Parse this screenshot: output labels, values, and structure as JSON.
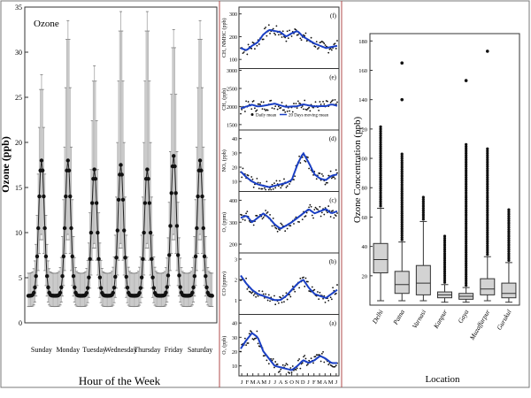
{
  "chart_data": [
    {
      "type": "line",
      "panel_label": "Ozone",
      "xlabel": "Hour of the Week",
      "ylabel": "Ozone (ppb)",
      "ylim": [
        0,
        35
      ],
      "yticks": [
        0,
        5,
        10,
        15,
        20,
        25,
        30,
        35
      ],
      "categories": [
        "Sunday",
        "Monday",
        "Tuesday",
        "Wednesday",
        "Thursday",
        "Friday",
        "Saturday"
      ],
      "daily_profile": {
        "mean_baseline": 3,
        "mean_peak": [
          18,
          18,
          17,
          17.5,
          17,
          18.5,
          18
        ],
        "upper_peak": [
          25,
          31,
          26,
          32,
          32,
          30,
          31
        ],
        "lower_peak": [
          11,
          11,
          10,
          10,
          10,
          11,
          11
        ]
      },
      "colors": {
        "mean": "#111111",
        "band": "#b8b8b8"
      }
    },
    {
      "type": "scatter",
      "xticks": [
        "J",
        "F",
        "M",
        "A",
        "M",
        "J",
        "J",
        "A",
        "S",
        "O",
        "N",
        "D",
        "J",
        "F",
        "M",
        "A",
        "M",
        "J"
      ],
      "legend": {
        "daily": "Daily mean",
        "moving": "20 Days moving mean"
      },
      "panels": [
        {
          "label": "(f)",
          "ylabel": "CH₃ NMHC (ppb)",
          "yticks": [
            100,
            200,
            300
          ],
          "ylim": [
            60,
            330
          ],
          "trend": [
            150,
            140,
            160,
            175,
            210,
            230,
            225,
            220,
            200,
            215,
            225,
            200,
            185,
            170,
            160,
            150,
            155,
            160
          ]
        },
        {
          "label": "(e)",
          "ylabel": "CH₄ (ppb)",
          "yticks": [
            1500,
            2000,
            2500,
            3000
          ],
          "ylim": [
            1350,
            3050
          ],
          "trend": [
            1950,
            2000,
            2050,
            2000,
            2020,
            2050,
            2080,
            2030,
            1990,
            2000,
            2010,
            2060,
            2030,
            2000,
            2010,
            2010,
            2060,
            2020
          ]
        },
        {
          "label": "(d)",
          "ylabel": "NOₓ (ppb)",
          "yticks": [
            10,
            20,
            30,
            40
          ],
          "ylim": [
            3,
            46
          ],
          "trend": [
            17,
            13,
            10,
            8,
            7,
            6,
            7,
            8,
            9,
            11,
            22,
            30,
            23,
            15,
            12,
            11,
            14,
            15
          ]
        },
        {
          "label": "(c)",
          "ylabel": "O₃ (ppm)",
          "yticks": [
            200,
            300,
            400
          ],
          "ylim": [
            160,
            440
          ],
          "trend": [
            320,
            330,
            300,
            320,
            340,
            320,
            290,
            270,
            285,
            300,
            320,
            340,
            360,
            340,
            350,
            360,
            340,
            350
          ]
        },
        {
          "label": "(b)",
          "ylabel": "CO (ppmv)",
          "yticks": [
            1,
            2,
            3
          ],
          "ylim": [
            0.3,
            3.3
          ],
          "trend": [
            2.2,
            1.8,
            1.5,
            1.3,
            1.2,
            1.1,
            1.0,
            1.0,
            1.2,
            1.5,
            1.8,
            2.0,
            1.6,
            1.3,
            1.2,
            1.1,
            1.3,
            1.5
          ]
        },
        {
          "label": "(a)",
          "ylabel": "O₃ (ppb)",
          "yticks": [
            10,
            20,
            30,
            40
          ],
          "ylim": [
            3,
            46
          ],
          "trend": [
            22,
            28,
            33,
            30,
            20,
            15,
            10,
            9,
            8,
            7,
            10,
            14,
            12,
            14,
            17,
            15,
            12,
            12
          ]
        }
      ],
      "colors": {
        "daily": "#111111",
        "moving": "#1a3fc4"
      }
    },
    {
      "type": "box",
      "xlabel": "Location",
      "ylabel": "Ozone Concentration (ppb)",
      "ylim": [
        0,
        185
      ],
      "yticks": [
        20,
        40,
        60,
        80,
        100,
        120,
        140,
        160,
        180
      ],
      "categories": [
        "Delhi",
        "Patna",
        "Varnasi",
        "Kanpur",
        "Gaya",
        "Muzaffarpur",
        "Gurukul"
      ],
      "boxes": [
        {
          "min": 3,
          "q1": 22,
          "median": 31,
          "q3": 42,
          "max": 66,
          "outlier_max": 122
        },
        {
          "min": 3,
          "q1": 8,
          "median": 14,
          "q3": 23,
          "max": 43,
          "outlier_max": 104,
          "extreme": [
            140,
            165
          ]
        },
        {
          "min": 3,
          "q1": 7,
          "median": 15,
          "q3": 27,
          "max": 57,
          "outlier_max": 74
        },
        {
          "min": 2,
          "q1": 5,
          "median": 7,
          "q3": 9,
          "max": 14,
          "outlier_max": 48
        },
        {
          "min": 2,
          "q1": 4,
          "median": 6,
          "q3": 8,
          "max": 12,
          "outlier_max": 110,
          "extreme": [
            153
          ]
        },
        {
          "min": 3,
          "q1": 7,
          "median": 11,
          "q3": 18,
          "max": 33,
          "outlier_max": 107,
          "extreme": [
            173
          ]
        },
        {
          "min": 2,
          "q1": 5,
          "median": 8,
          "q3": 15,
          "max": 29,
          "outlier_max": 66
        }
      ],
      "colors": {
        "box": "#d3d3d3",
        "outline": "#333333"
      }
    }
  ]
}
